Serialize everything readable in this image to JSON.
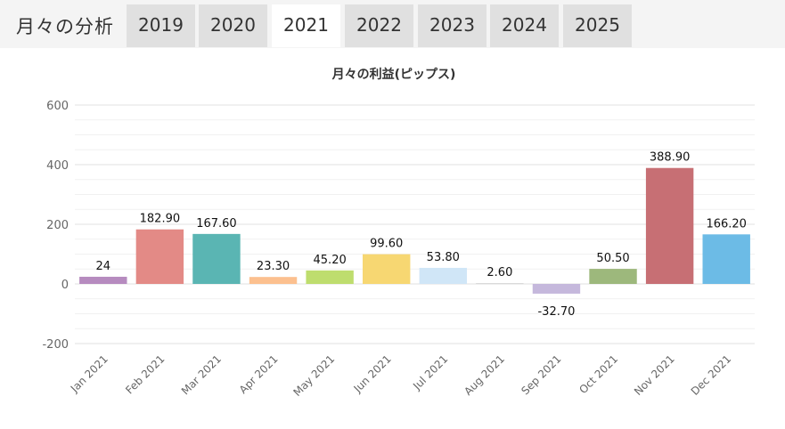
{
  "header": {
    "title": "月々の分析",
    "tabs": [
      {
        "label": "2019",
        "active": false
      },
      {
        "label": "2020",
        "active": false
      },
      {
        "label": "2021",
        "active": true
      },
      {
        "label": "2022",
        "active": false
      },
      {
        "label": "2023",
        "active": false
      },
      {
        "label": "2024",
        "active": false
      },
      {
        "label": "2025",
        "active": false
      }
    ]
  },
  "chart_data": {
    "type": "bar",
    "title": "月々の利益(ピップス)",
    "xlabel": "",
    "ylabel": "",
    "ylim": [
      -200,
      600
    ],
    "yticks": [
      "600",
      "400",
      "200",
      "0",
      "-200"
    ],
    "grid": true,
    "categories": [
      "Jan 2021",
      "Feb 2021",
      "Mar 2021",
      "Apr 2021",
      "May 2021",
      "Jun 2021",
      "Jul 2021",
      "Aug 2021",
      "Sep 2021",
      "Oct 2021",
      "Nov 2021",
      "Dec 2021"
    ],
    "values": [
      24,
      182.9,
      167.6,
      23.3,
      45.2,
      99.6,
      53.8,
      2.6,
      -32.7,
      50.5,
      388.9,
      166.2
    ],
    "data_labels": [
      "24",
      "182.90",
      "167.60",
      "23.30",
      "45.20",
      "99.60",
      "53.80",
      "2.60",
      "-32.70",
      "50.50",
      "388.90",
      "166.20"
    ],
    "colors": [
      "#b68bbf",
      "#e38a86",
      "#5ab5b3",
      "#fcc08f",
      "#bedd6e",
      "#f7d772",
      "#d0e6f7",
      "#d4d4d4",
      "#c5b8dc",
      "#9db87c",
      "#c76f74",
      "#6cbbe6"
    ]
  }
}
